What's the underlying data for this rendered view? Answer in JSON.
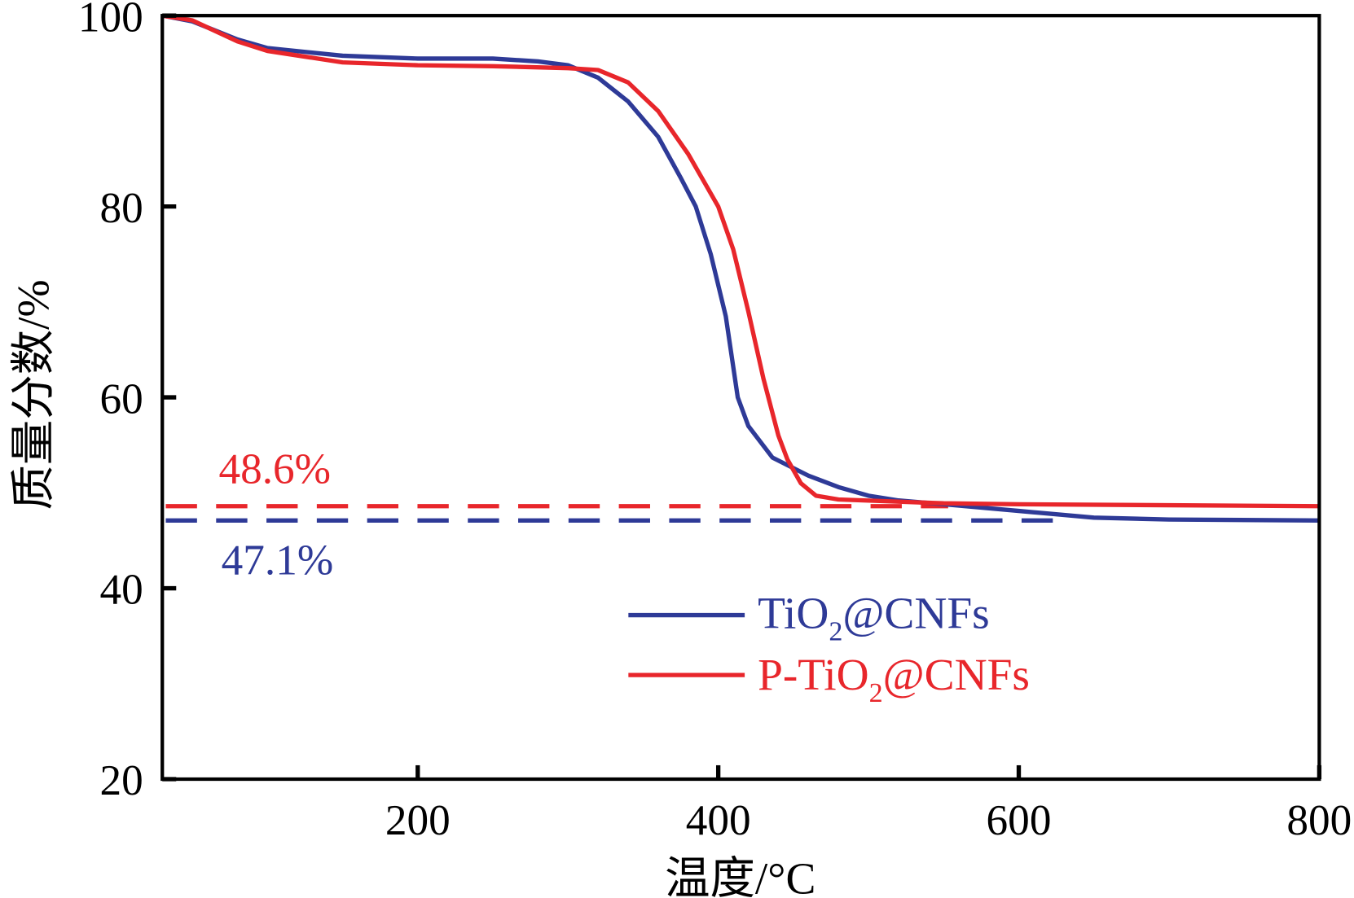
{
  "chart_data": {
    "type": "line",
    "title": "",
    "xlabel": "温度/°C",
    "ylabel": "质量分数/%",
    "xlim": [
      30,
      800
    ],
    "ylim": [
      20,
      100
    ],
    "xticks": [
      200,
      400,
      600,
      800
    ],
    "yticks": [
      20,
      40,
      60,
      80,
      100
    ],
    "xtick_labels": [
      "200",
      "400",
      "600",
      "800"
    ],
    "ytick_labels": [
      "20",
      "40",
      "60",
      "80",
      "100"
    ],
    "grid": false,
    "legend_placement": "lower-right",
    "legend": [
      {
        "base": "TiO",
        "sub": "2",
        "rest": "@CNFs",
        "color": "#2E3A97"
      },
      {
        "base": "P-TiO",
        "sub": "2",
        "rest": "@CNFs",
        "color": "#E8262B"
      }
    ],
    "series": [
      {
        "name": "TiO2@CNFs",
        "color": "#2E3A97",
        "x": [
          30,
          50,
          80,
          100,
          150,
          200,
          250,
          280,
          300,
          320,
          340,
          360,
          375,
          385,
          395,
          405,
          413,
          420,
          436,
          460,
          480,
          500,
          520,
          550,
          600,
          650,
          700,
          800
        ],
        "y": [
          100,
          99.4,
          97.5,
          96.6,
          95.8,
          95.5,
          95.5,
          95.2,
          94.8,
          93.5,
          91,
          87.3,
          83,
          80,
          75,
          68.5,
          60,
          57,
          53.7,
          51.8,
          50.6,
          49.7,
          49.2,
          48.8,
          48.1,
          47.4,
          47.2,
          47.1
        ]
      },
      {
        "name": "P-TiO2@CNFs",
        "color": "#E8262B",
        "x": [
          30,
          50,
          80,
          100,
          150,
          200,
          250,
          300,
          320,
          340,
          360,
          380,
          400,
          410,
          420,
          430,
          440,
          446,
          455,
          465,
          480,
          550,
          600,
          700,
          800
        ],
        "y": [
          100,
          99.5,
          97.3,
          96.3,
          95.1,
          94.8,
          94.7,
          94.5,
          94.3,
          93,
          90,
          85.5,
          80,
          75.5,
          69,
          62,
          56,
          53.5,
          51,
          49.7,
          49.3,
          48.9,
          48.8,
          48.7,
          48.6
        ]
      }
    ],
    "annotations": [
      {
        "text": "48.6%",
        "value": 48.6,
        "color": "#E8262B",
        "line": "dashed",
        "x_end": 553
      },
      {
        "text": "47.1%",
        "value": 47.1,
        "color": "#2E3A97",
        "line": "dashed",
        "x_end": 635
      }
    ]
  }
}
